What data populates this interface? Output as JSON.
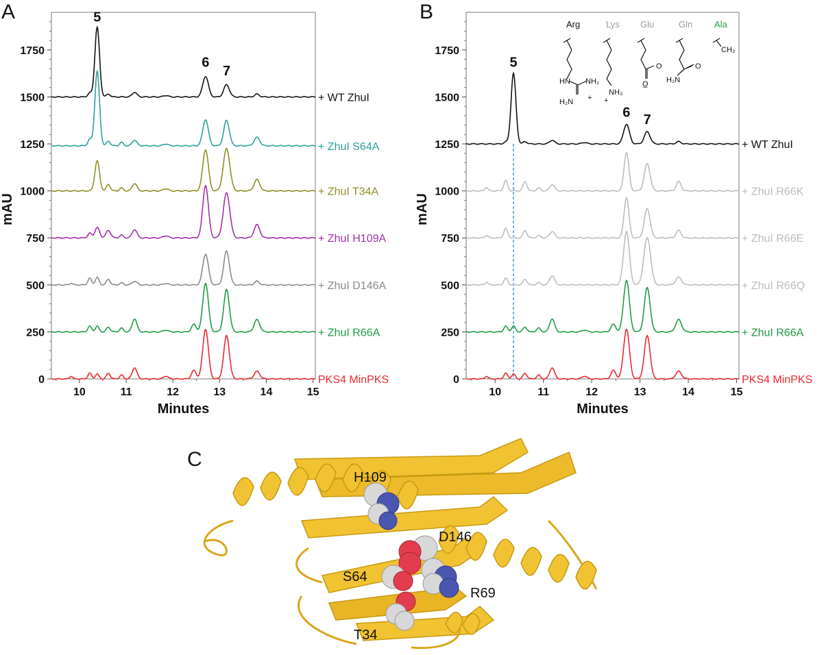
{
  "panels": {
    "a": "A",
    "b": "B",
    "c": "C"
  },
  "colors": {
    "black": "#111111",
    "teal": "#2aa09a",
    "olive": "#8f8e25",
    "purple": "#a12fa8",
    "grey": "#8a8a8a",
    "lightgrey": "#bdbdbd",
    "green": "#1f9a45",
    "red": "#e8282c",
    "dashed": "#3a8fd6",
    "ribbon": "#f1c232",
    "ribbonDark": "#c79a12",
    "atomO": "#e23d4e",
    "atomN": "#4a56b0",
    "atomC": "#d8d8d8"
  },
  "chart_data": [
    {
      "type": "line",
      "panel": "A",
      "xlabel": "Minutes",
      "ylabel": "mAU",
      "xlim": [
        9.4,
        15.05
      ],
      "ylim": [
        0,
        1950
      ],
      "x_ticks": [
        "10",
        "11",
        "12",
        "13",
        "14",
        "15"
      ],
      "y_ticks": [
        "0",
        "250",
        "500",
        "750",
        "1000",
        "1250",
        "1500",
        "1750"
      ],
      "peak_labels": [
        {
          "text": "5",
          "x": 10.38,
          "y": 1900
        },
        {
          "text": "6",
          "x": 12.7,
          "y": 1660
        },
        {
          "text": "7",
          "x": 13.15,
          "y": 1615
        }
      ],
      "series": [
        {
          "name": "+ WT ZhuI",
          "color": "black",
          "offset": 1500,
          "peaks": [
            [
              10.22,
              20,
              0.04
            ],
            [
              10.38,
              370,
              0.05
            ],
            [
              10.62,
              15,
              0.04
            ],
            [
              11.18,
              25,
              0.05
            ],
            [
              11.85,
              8,
              0.05
            ],
            [
              12.7,
              110,
              0.06
            ],
            [
              13.15,
              65,
              0.06
            ],
            [
              13.8,
              15,
              0.05
            ]
          ]
        },
        {
          "name": "+ ZhuI S64A",
          "color": "teal",
          "offset": 1240,
          "peaks": [
            [
              10.22,
              35,
              0.04
            ],
            [
              10.38,
              395,
              0.05
            ],
            [
              10.62,
              25,
              0.04
            ],
            [
              10.9,
              18,
              0.04
            ],
            [
              11.18,
              30,
              0.05
            ],
            [
              11.85,
              10,
              0.05
            ],
            [
              12.7,
              140,
              0.06
            ],
            [
              13.15,
              135,
              0.06
            ],
            [
              13.8,
              45,
              0.06
            ]
          ]
        },
        {
          "name": "+ ZhuI T34A",
          "color": "olive",
          "offset": 1000,
          "peaks": [
            [
              10.38,
              160,
              0.05
            ],
            [
              10.62,
              35,
              0.04
            ],
            [
              10.9,
              15,
              0.04
            ],
            [
              11.18,
              40,
              0.05
            ],
            [
              11.85,
              12,
              0.05
            ],
            [
              12.7,
              220,
              0.06
            ],
            [
              13.15,
              225,
              0.07
            ],
            [
              13.8,
              60,
              0.06
            ]
          ]
        },
        {
          "name": "+ ZhuI H109A",
          "color": "purple",
          "offset": 750,
          "peaks": [
            [
              10.22,
              25,
              0.04
            ],
            [
              10.38,
              55,
              0.05
            ],
            [
              10.62,
              40,
              0.05
            ],
            [
              10.9,
              15,
              0.04
            ],
            [
              11.18,
              45,
              0.05
            ],
            [
              11.85,
              12,
              0.05
            ],
            [
              12.7,
              280,
              0.06
            ],
            [
              13.15,
              240,
              0.07
            ],
            [
              13.8,
              70,
              0.06
            ]
          ]
        },
        {
          "name": "+ ZhuI D146A",
          "color": "grey",
          "offset": 500,
          "peaks": [
            [
              9.82,
              10,
              0.03
            ],
            [
              10.22,
              35,
              0.04
            ],
            [
              10.38,
              40,
              0.04
            ],
            [
              10.62,
              30,
              0.04
            ],
            [
              10.9,
              10,
              0.04
            ],
            [
              11.18,
              20,
              0.05
            ],
            [
              11.85,
              8,
              0.05
            ],
            [
              12.7,
              165,
              0.06
            ],
            [
              13.15,
              180,
              0.06
            ],
            [
              13.8,
              20,
              0.05
            ]
          ]
        },
        {
          "name": "+ ZhuI R66A",
          "color": "green",
          "offset": 250,
          "peaks": [
            [
              10.22,
              30,
              0.04
            ],
            [
              10.38,
              30,
              0.04
            ],
            [
              10.62,
              25,
              0.04
            ],
            [
              10.9,
              20,
              0.04
            ],
            [
              11.18,
              70,
              0.05
            ],
            [
              11.85,
              10,
              0.05
            ],
            [
              12.45,
              40,
              0.05
            ],
            [
              12.7,
              260,
              0.06
            ],
            [
              13.15,
              225,
              0.06
            ],
            [
              13.8,
              65,
              0.06
            ]
          ]
        },
        {
          "name": "PKS4 MinPKS",
          "color": "red",
          "offset": 0,
          "peaks": [
            [
              9.82,
              15,
              0.03
            ],
            [
              10.22,
              30,
              0.04
            ],
            [
              10.38,
              25,
              0.04
            ],
            [
              10.62,
              30,
              0.04
            ],
            [
              10.9,
              20,
              0.04
            ],
            [
              11.18,
              60,
              0.05
            ],
            [
              11.85,
              15,
              0.05
            ],
            [
              12.45,
              45,
              0.05
            ],
            [
              12.7,
              265,
              0.06
            ],
            [
              13.15,
              230,
              0.06
            ],
            [
              13.8,
              40,
              0.06
            ]
          ]
        }
      ]
    },
    {
      "type": "line",
      "panel": "B",
      "xlabel": "Minutes",
      "ylabel": "mAU",
      "xlim": [
        9.4,
        15.05
      ],
      "ylim": [
        0,
        1950
      ],
      "x_ticks": [
        "10",
        "11",
        "12",
        "13",
        "14",
        "15"
      ],
      "y_ticks": [
        "0",
        "250",
        "500",
        "750",
        "1000",
        "1250",
        "1500",
        "1750"
      ],
      "dashed_line_x": 10.38,
      "peak_labels": [
        {
          "text": "5",
          "x": 10.38,
          "y": 1660
        },
        {
          "text": "6",
          "x": 12.72,
          "y": 1395
        },
        {
          "text": "7",
          "x": 13.15,
          "y": 1355
        }
      ],
      "series": [
        {
          "name": "+ WT ZhuI",
          "color": "black",
          "offset": 1250,
          "peaks": [
            [
              10.22,
              10,
              0.04
            ],
            [
              10.38,
              375,
              0.05
            ],
            [
              10.62,
              12,
              0.04
            ],
            [
              11.18,
              20,
              0.05
            ],
            [
              11.85,
              8,
              0.05
            ],
            [
              12.72,
              105,
              0.06
            ],
            [
              13.15,
              65,
              0.06
            ],
            [
              13.8,
              12,
              0.05
            ]
          ]
        },
        {
          "name": "+ ZhuI R66K",
          "color": "lightgrey",
          "offset": 1000,
          "peaks": [
            [
              9.82,
              20,
              0.03
            ],
            [
              10.22,
              55,
              0.04
            ],
            [
              10.62,
              50,
              0.04
            ],
            [
              10.9,
              15,
              0.04
            ],
            [
              11.18,
              35,
              0.05
            ],
            [
              12.72,
              205,
              0.05
            ],
            [
              13.15,
              145,
              0.06
            ],
            [
              13.8,
              50,
              0.05
            ]
          ]
        },
        {
          "name": "+ ZhuI R66E",
          "color": "lightgrey",
          "offset": 750,
          "peaks": [
            [
              9.82,
              15,
              0.03
            ],
            [
              10.22,
              50,
              0.04
            ],
            [
              10.62,
              40,
              0.04
            ],
            [
              10.9,
              12,
              0.04
            ],
            [
              11.18,
              35,
              0.05
            ],
            [
              12.72,
              215,
              0.05
            ],
            [
              13.15,
              155,
              0.06
            ],
            [
              13.8,
              40,
              0.05
            ]
          ]
        },
        {
          "name": "+ ZhuI R66Q",
          "color": "lightgrey",
          "offset": 500,
          "peaks": [
            [
              9.82,
              15,
              0.03
            ],
            [
              10.22,
              35,
              0.04
            ],
            [
              10.62,
              30,
              0.04
            ],
            [
              10.9,
              12,
              0.04
            ],
            [
              11.18,
              50,
              0.05
            ],
            [
              12.72,
              285,
              0.06
            ],
            [
              13.15,
              250,
              0.07
            ],
            [
              13.8,
              40,
              0.06
            ]
          ]
        },
        {
          "name": "+ ZhuI R66A",
          "color": "green",
          "offset": 250,
          "peaks": [
            [
              10.22,
              30,
              0.04
            ],
            [
              10.38,
              30,
              0.04
            ],
            [
              10.62,
              25,
              0.04
            ],
            [
              10.9,
              20,
              0.04
            ],
            [
              11.18,
              70,
              0.05
            ],
            [
              11.85,
              10,
              0.05
            ],
            [
              12.45,
              40,
              0.05
            ],
            [
              12.72,
              275,
              0.06
            ],
            [
              13.15,
              235,
              0.06
            ],
            [
              13.8,
              65,
              0.06
            ]
          ]
        },
        {
          "name": "PKS4 MinPKS",
          "color": "red",
          "offset": 0,
          "peaks": [
            [
              9.82,
              15,
              0.03
            ],
            [
              10.22,
              30,
              0.04
            ],
            [
              10.38,
              25,
              0.04
            ],
            [
              10.62,
              30,
              0.04
            ],
            [
              10.9,
              20,
              0.04
            ],
            [
              11.18,
              60,
              0.05
            ],
            [
              11.85,
              15,
              0.05
            ],
            [
              12.45,
              45,
              0.05
            ],
            [
              12.72,
              265,
              0.06
            ],
            [
              13.15,
              230,
              0.06
            ],
            [
              13.8,
              40,
              0.06
            ]
          ]
        }
      ]
    }
  ],
  "amino_acids": [
    {
      "name": "Arg",
      "color": "black"
    },
    {
      "name": "Lys",
      "color": "lightgrey"
    },
    {
      "name": "Glu",
      "color": "lightgrey"
    },
    {
      "name": "Gln",
      "color": "lightgrey"
    },
    {
      "name": "Ala",
      "color": "green"
    }
  ],
  "chem_labels": {
    "arg_hn": "HN",
    "arg_nh2": "NH₂",
    "arg_h2n": "H₂N",
    "arg_plus": "+",
    "lys_nh3": "NH₃",
    "lys_plus": "+",
    "glu_o": "O",
    "glu_ominus": "O̲",
    "gln_o": "O",
    "gln_h2n": "H₂N",
    "ala_ch3": "CH₃"
  },
  "residues": [
    "H109",
    "D146",
    "S64",
    "R69",
    "T34"
  ]
}
